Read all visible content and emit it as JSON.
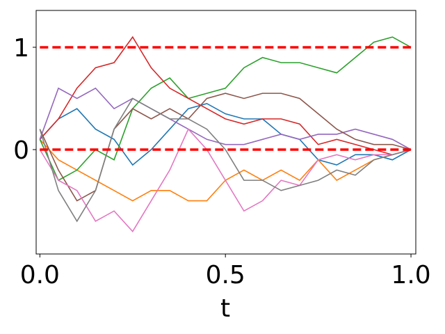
{
  "chart_data": {
    "type": "line",
    "x_label": "t",
    "x": [
      0,
      0.05,
      0.1,
      0.15,
      0.2,
      0.25,
      0.3,
      0.35,
      0.4,
      0.45,
      0.5,
      0.55,
      0.6,
      0.65,
      0.7,
      0.75,
      0.8,
      0.85,
      0.9,
      0.95,
      1
    ],
    "series": [
      {
        "color": "#1f77b4",
        "values": [
          0.1,
          0.3,
          0.4,
          0.2,
          0.1,
          -0.15,
          0.0,
          0.2,
          0.4,
          0.45,
          0.35,
          0.3,
          0.3,
          0.15,
          0.1,
          -0.1,
          -0.15,
          -0.05,
          -0.05,
          -0.1,
          0
        ]
      },
      {
        "color": "#ff7f0e",
        "values": [
          0.1,
          -0.1,
          -0.2,
          -0.3,
          -0.4,
          -0.5,
          -0.4,
          -0.4,
          -0.5,
          -0.5,
          -0.3,
          -0.2,
          -0.3,
          -0.2,
          -0.3,
          -0.1,
          -0.3,
          -0.2,
          -0.1,
          -0.05,
          0
        ]
      },
      {
        "color": "#2ca02c",
        "values": [
          0.1,
          -0.3,
          -0.2,
          0.0,
          -0.1,
          0.4,
          0.6,
          0.7,
          0.5,
          0.55,
          0.6,
          0.8,
          0.9,
          0.85,
          0.85,
          0.8,
          0.75,
          0.9,
          1.05,
          1.1,
          1.0
        ]
      },
      {
        "color": "#d62728",
        "values": [
          0.1,
          0.3,
          0.6,
          0.8,
          0.85,
          1.1,
          0.8,
          0.6,
          0.5,
          0.4,
          0.3,
          0.25,
          0.3,
          0.3,
          0.25,
          0.05,
          0.1,
          0.05,
          0.0,
          -0.05,
          0
        ]
      },
      {
        "color": "#9467bd",
        "values": [
          0.1,
          0.6,
          0.5,
          0.6,
          0.4,
          0.5,
          0.4,
          0.3,
          0.2,
          0.1,
          0.05,
          0.05,
          0.1,
          0.15,
          0.1,
          0.15,
          0.15,
          0.2,
          0.15,
          0.1,
          0
        ]
      },
      {
        "color": "#8c564b",
        "values": [
          0.2,
          -0.2,
          -0.5,
          -0.4,
          0.2,
          0.4,
          0.3,
          0.4,
          0.3,
          0.5,
          0.55,
          0.5,
          0.55,
          0.55,
          0.5,
          0.35,
          0.2,
          0.1,
          0.05,
          0.05,
          0
        ]
      },
      {
        "color": "#e377c2",
        "values": [
          0.0,
          -0.3,
          -0.4,
          -0.7,
          -0.6,
          -0.8,
          -0.5,
          -0.2,
          0.2,
          0.0,
          -0.3,
          -0.6,
          -0.5,
          -0.3,
          -0.35,
          -0.1,
          -0.05,
          -0.1,
          -0.05,
          -0.05,
          0
        ]
      },
      {
        "color": "#7f7f7f",
        "values": [
          0.2,
          -0.4,
          -0.7,
          -0.4,
          0.2,
          0.5,
          0.4,
          0.3,
          0.3,
          0.2,
          0.0,
          -0.3,
          -0.3,
          -0.4,
          -0.35,
          -0.3,
          -0.2,
          -0.25,
          -0.1,
          -0.05,
          0
        ]
      }
    ],
    "hlines": [
      0,
      1
    ],
    "hline_color": "#ff0000",
    "xlim": [
      -0.01,
      1.013
    ],
    "ylim": [
      -1.02,
      1.36
    ],
    "xticks": [
      {
        "value": 0,
        "label": "0.0"
      },
      {
        "value": 0.5,
        "label": "0.5"
      },
      {
        "value": 1,
        "label": "1.0"
      }
    ],
    "yticks": [
      0,
      1
    ]
  }
}
